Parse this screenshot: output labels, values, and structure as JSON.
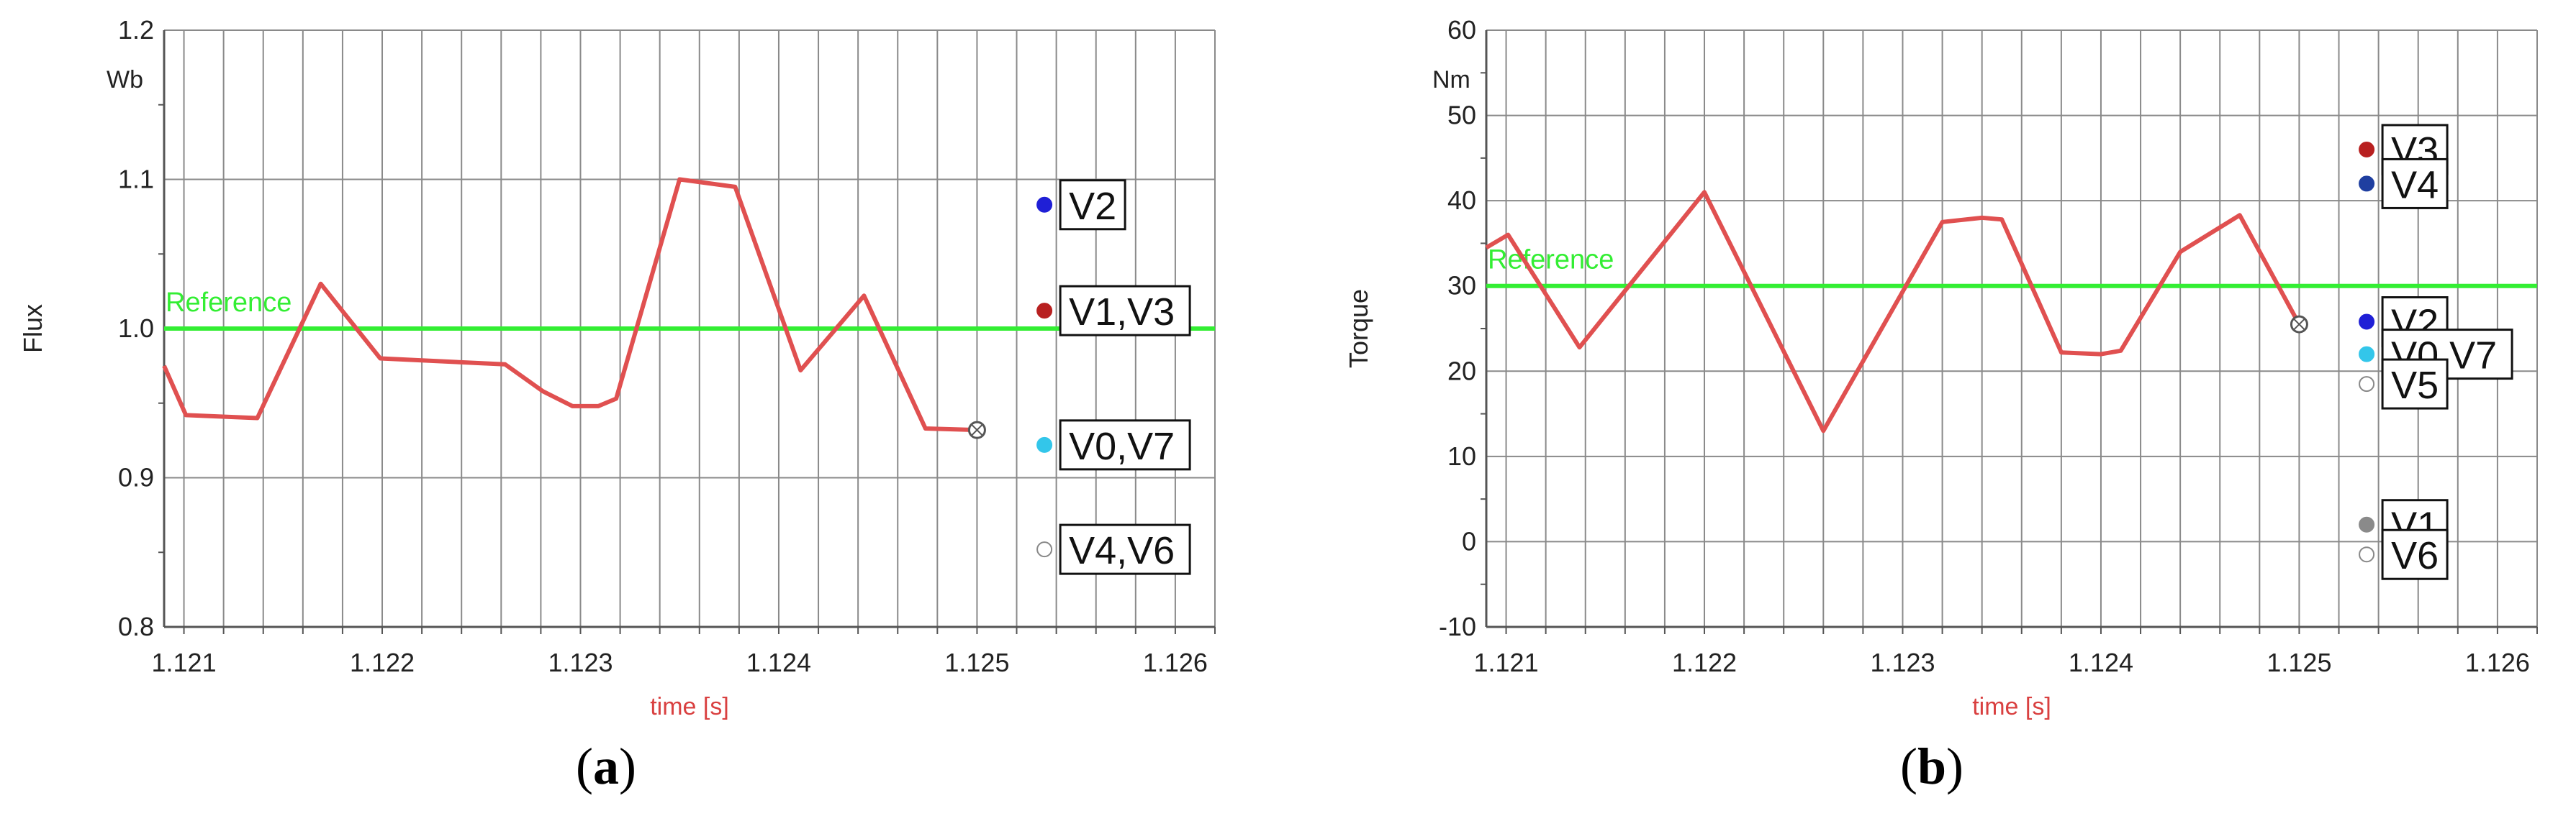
{
  "chart_data": [
    {
      "type": "line",
      "panel_label": "a",
      "xlabel": "time [s]",
      "ylabel": "Flux",
      "yunit": "Wb",
      "xlim": [
        1.1209,
        1.1262
      ],
      "ylim": [
        0.8,
        1.2
      ],
      "xticks": [
        "1.121",
        "1.122",
        "1.123",
        "1.124",
        "1.125",
        "1.126"
      ],
      "yticks": [
        "0.8",
        "0.9",
        "1.0",
        "1.1",
        "1.2"
      ],
      "grid": true,
      "colors": {
        "signal": "#e05050",
        "reference": "#33ee33",
        "grid": "#8a8a8a"
      },
      "reference": {
        "name": "Reference",
        "value": 1.0
      },
      "series": [
        {
          "x": [
            1.1209,
            1.12101,
            1.12137,
            1.12169,
            1.12199,
            1.12262,
            1.12281,
            1.12296,
            1.12309,
            1.12318,
            1.1235,
            1.12378,
            1.12411,
            1.12443,
            1.12474,
            1.125
          ],
          "y": [
            0.975,
            0.942,
            0.94,
            1.03,
            0.98,
            0.976,
            0.958,
            0.948,
            0.948,
            0.953,
            1.1,
            1.095,
            0.972,
            1.022,
            0.933,
            0.932
          ]
        }
      ],
      "end_marker": {
        "x": 1.125,
        "y": 0.932
      },
      "vector_points": [
        {
          "label": "V2",
          "x": 1.12534,
          "y": 1.083,
          "color": "#1f1fd6"
        },
        {
          "label": "V1,V3",
          "x": 1.12534,
          "y": 1.012,
          "color": "#b82020"
        },
        {
          "label": "V0,V7",
          "x": 1.12534,
          "y": 0.922,
          "color": "#33c6ea"
        },
        {
          "label": "V4,V6",
          "x": 1.12534,
          "y": 0.852,
          "color": "#ffffff"
        }
      ]
    },
    {
      "type": "line",
      "panel_label": "b",
      "xlabel": "time [s]",
      "ylabel": "Torque",
      "yunit": "Nm",
      "xlim": [
        1.1209,
        1.1262
      ],
      "ylim": [
        -10,
        60
      ],
      "xticks": [
        "1.121",
        "1.122",
        "1.123",
        "1.124",
        "1.125",
        "1.126"
      ],
      "yticks": [
        "-10",
        "0",
        "10",
        "20",
        "30",
        "40",
        "50",
        "60"
      ],
      "grid": true,
      "colors": {
        "signal": "#e05050",
        "reference": "#33ee33",
        "grid": "#8a8a8a"
      },
      "reference": {
        "name": "Reference",
        "value": 30
      },
      "series": [
        {
          "x": [
            1.1209,
            1.12101,
            1.12137,
            1.122,
            1.1226,
            1.1232,
            1.1234,
            1.1235,
            1.1238,
            1.124,
            1.1241,
            1.1244,
            1.1247,
            1.125
          ],
          "y": [
            34.5,
            36,
            22.8,
            41,
            13,
            37.5,
            38,
            37.8,
            22.2,
            22,
            22.4,
            34,
            38.3,
            25.5
          ]
        }
      ],
      "end_marker": {
        "x": 1.125,
        "y": 25.5
      },
      "vector_points": [
        {
          "label": "V3",
          "x": 1.12534,
          "y": 46,
          "color": "#b82020"
        },
        {
          "label": "V4",
          "x": 1.12534,
          "y": 42,
          "color": "#1f3fa0"
        },
        {
          "label": "V2",
          "x": 1.12534,
          "y": 25.8,
          "color": "#1f1fd6"
        },
        {
          "label": "V0,V7",
          "x": 1.12534,
          "y": 22,
          "color": "#33c6ea"
        },
        {
          "label": "V5",
          "x": 1.12534,
          "y": 18.5,
          "color": "#ffffff"
        },
        {
          "label": "V1",
          "x": 1.12534,
          "y": 2,
          "color": "#8a8a8a"
        },
        {
          "label": "V6",
          "x": 1.12534,
          "y": -1.5,
          "color": "#ffffff"
        }
      ]
    }
  ]
}
